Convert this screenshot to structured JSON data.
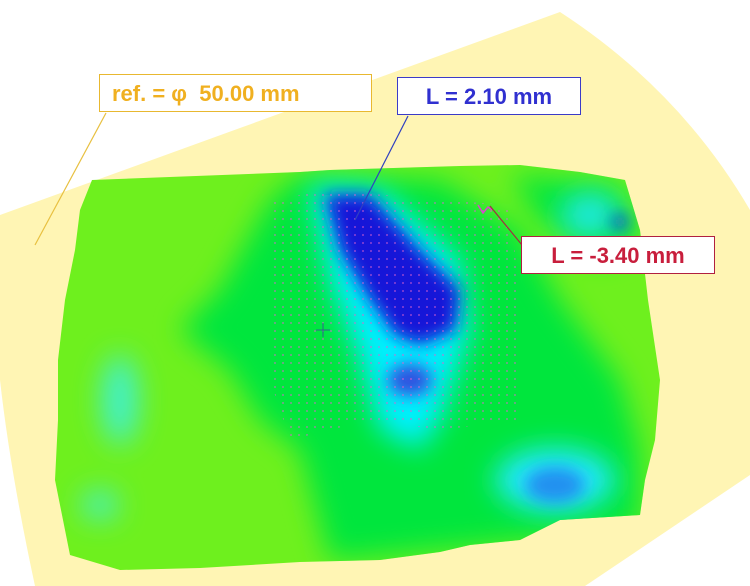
{
  "annotations": {
    "reference": "ref. = φ  50.00 mm",
    "max_deviation": "L = 2.10 mm",
    "min_deviation": "L = -3.40 mm"
  },
  "colors": {
    "reference_sheet": "#fff5b4",
    "surface_base": "#6ef01e",
    "surface_mid": "#00e63c",
    "surface_cyan": "#00f0ff",
    "surface_blue": "#1818d8",
    "reference_label": "#f0b020",
    "max_label": "#3030d0",
    "min_label": "#c81e3c"
  }
}
